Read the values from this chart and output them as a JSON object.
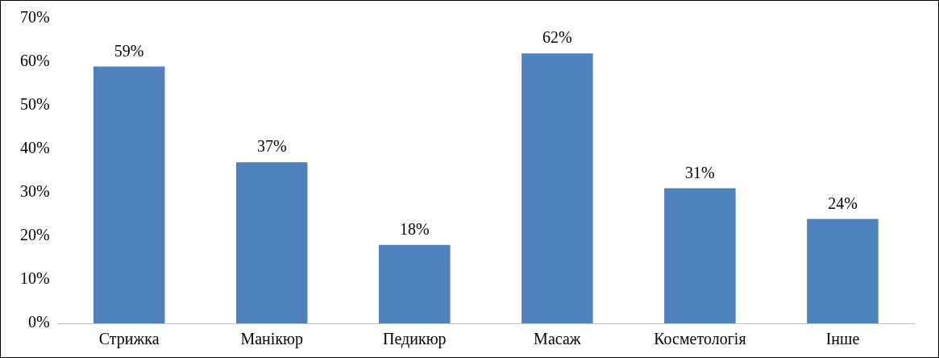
{
  "chart_data": {
    "type": "bar",
    "categories": [
      "Стрижка",
      "Манікюр",
      "Педикюр",
      "Масаж",
      "Косметологія",
      "Інше"
    ],
    "values": [
      59,
      37,
      18,
      62,
      31,
      24
    ],
    "color": "#4f81bd",
    "value_labels": [
      "59%",
      "37%",
      "18%",
      "62%",
      "31%",
      "24%"
    ],
    "ylim": [
      0,
      70
    ],
    "yticks": [
      {
        "value": 0,
        "label": "0%"
      },
      {
        "value": 10,
        "label": "10%"
      },
      {
        "value": 20,
        "label": "20%"
      },
      {
        "value": 30,
        "label": "30%"
      },
      {
        "value": 40,
        "label": "40%"
      },
      {
        "value": 50,
        "label": "50%"
      },
      {
        "value": 60,
        "label": "60%"
      },
      {
        "value": 70,
        "label": "70%"
      }
    ],
    "grid": false,
    "legend": false
  }
}
